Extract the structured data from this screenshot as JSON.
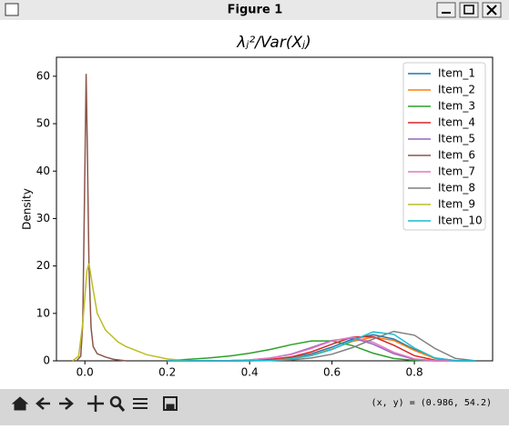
{
  "window": {
    "title": "Figure 1",
    "status": "(x, y) = (0.986, 54.2)"
  },
  "chart_data": {
    "type": "line",
    "title": "λⱼ²/Var(Xⱼ)",
    "y_label": "Density",
    "xlim": [
      -0.069,
      0.99
    ],
    "ylim": [
      0,
      64
    ],
    "xticks": [
      {
        "value": 0,
        "label": "0.0"
      },
      0.2,
      0.4,
      0.6,
      0.8
    ],
    "yticks": [
      0,
      10,
      20,
      30,
      40,
      50,
      60
    ],
    "legend": "upper right",
    "x": [
      0.2,
      0.25,
      0.3,
      0.35,
      0.4,
      0.45,
      0.5,
      0.55,
      0.6,
      0.65,
      0.7,
      0.75,
      0.8,
      0.85,
      0.9,
      0.95
    ],
    "series": [
      {
        "name": "Item_1",
        "color": "#1f77b4",
        "values": [
          0,
          0,
          0,
          0,
          0.05,
          0.2,
          0.6,
          1.5,
          2.9,
          4.6,
          5.5,
          4.6,
          2.4,
          0.6,
          0.05,
          0
        ]
      },
      {
        "name": "Item_2",
        "color": "#ff7f0e",
        "values": [
          0,
          0,
          0,
          0,
          0.05,
          0.2,
          0.5,
          1.2,
          2.5,
          4.1,
          5.0,
          4.3,
          2.2,
          0.5,
          0.05,
          0
        ]
      },
      {
        "name": "Item_3",
        "color": "#2ca02c",
        "values": [
          0.05,
          0.3,
          0.6,
          1.0,
          1.6,
          2.4,
          3.4,
          4.2,
          4.2,
          3.2,
          1.6,
          0.5,
          0.1,
          0,
          0,
          0
        ]
      },
      {
        "name": "Item_4",
        "color": "#d62728",
        "values": [
          0,
          0,
          0,
          0,
          0.05,
          0.3,
          0.8,
          1.9,
          3.5,
          5.0,
          5.1,
          3.3,
          1.1,
          0.15,
          0,
          0
        ]
      },
      {
        "name": "Item_5",
        "color": "#9467bd",
        "values": [
          0,
          0,
          0,
          0.05,
          0.2,
          0.6,
          1.4,
          2.8,
          4.3,
          4.8,
          3.5,
          1.5,
          0.3,
          0,
          0,
          0
        ]
      },
      {
        "name": "Item_6",
        "color": "#8c564b",
        "x": [
          -0.02,
          -0.01,
          -0.005,
          0,
          0.003,
          0.006,
          0.01,
          0.015,
          0.02,
          0.03,
          0.05,
          0.07,
          0.1
        ],
        "values": [
          0,
          1,
          8,
          40,
          60.5,
          45,
          20,
          7,
          3,
          1.5,
          0.8,
          0.3,
          0
        ]
      },
      {
        "name": "Item_7",
        "color": "#e377c2",
        "values": [
          0,
          0,
          0,
          0.05,
          0.2,
          0.6,
          1.3,
          2.6,
          4.2,
          5.0,
          3.9,
          1.8,
          0.4,
          0.05,
          0,
          0
        ]
      },
      {
        "name": "Item_8",
        "color": "#7f7f7f",
        "values": [
          0,
          0,
          0,
          0,
          0,
          0.05,
          0.2,
          0.6,
          1.4,
          2.8,
          4.6,
          6.2,
          5.4,
          2.6,
          0.5,
          0
        ]
      },
      {
        "name": "Item_9",
        "color": "#bcbd22",
        "x": [
          -0.03,
          -0.015,
          -0.005,
          0.005,
          0.01,
          0.02,
          0.03,
          0.05,
          0.08,
          0.1,
          0.15,
          0.2,
          0.25
        ],
        "values": [
          0,
          1,
          8,
          19,
          20.5,
          15,
          10,
          6.5,
          4,
          3,
          1.3,
          0.4,
          0
        ]
      },
      {
        "name": "Item_10",
        "color": "#17becf",
        "values": [
          0,
          0,
          0,
          0,
          0.02,
          0.1,
          0.4,
          1.1,
          2.4,
          4.3,
          6.1,
          5.6,
          2.7,
          0.6,
          0.05,
          0
        ]
      }
    ]
  }
}
